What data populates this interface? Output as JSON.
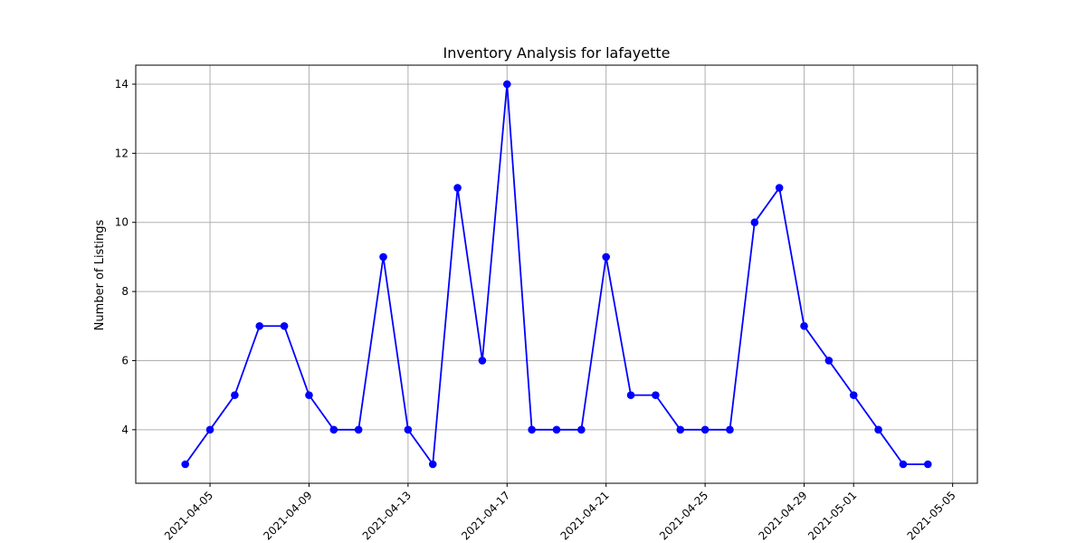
{
  "chart_data": {
    "type": "line",
    "title": "Inventory Analysis for lafayette",
    "xlabel": "",
    "ylabel": "Number of Listings",
    "grid": true,
    "x_is_date": true,
    "xlim": [
      "2021-04-02",
      "2021-05-06"
    ],
    "ylim": [
      2.45,
      14.55
    ],
    "x_ticks": [
      "2021-04-05",
      "2021-04-09",
      "2021-04-13",
      "2021-04-17",
      "2021-04-21",
      "2021-04-25",
      "2021-04-29",
      "2021-05-01",
      "2021-05-05"
    ],
    "y_ticks": [
      4,
      6,
      8,
      10,
      12,
      14
    ],
    "series": [
      {
        "color": "#0000ff",
        "marker": "circle",
        "points": [
          {
            "x": "2021-04-04",
            "y": 3
          },
          {
            "x": "2021-04-05",
            "y": 4
          },
          {
            "x": "2021-04-06",
            "y": 5
          },
          {
            "x": "2021-04-07",
            "y": 7
          },
          {
            "x": "2021-04-08",
            "y": 7
          },
          {
            "x": "2021-04-09",
            "y": 5
          },
          {
            "x": "2021-04-10",
            "y": 4
          },
          {
            "x": "2021-04-11",
            "y": 4
          },
          {
            "x": "2021-04-12",
            "y": 9
          },
          {
            "x": "2021-04-13",
            "y": 4
          },
          {
            "x": "2021-04-14",
            "y": 3
          },
          {
            "x": "2021-04-15",
            "y": 11
          },
          {
            "x": "2021-04-16",
            "y": 6
          },
          {
            "x": "2021-04-17",
            "y": 14
          },
          {
            "x": "2021-04-18",
            "y": 4
          },
          {
            "x": "2021-04-19",
            "y": 4
          },
          {
            "x": "2021-04-20",
            "y": 4
          },
          {
            "x": "2021-04-21",
            "y": 9
          },
          {
            "x": "2021-04-22",
            "y": 5
          },
          {
            "x": "2021-04-23",
            "y": 5
          },
          {
            "x": "2021-04-24",
            "y": 4
          },
          {
            "x": "2021-04-25",
            "y": 4
          },
          {
            "x": "2021-04-26",
            "y": 4
          },
          {
            "x": "2021-04-27",
            "y": 10
          },
          {
            "x": "2021-04-28",
            "y": 11
          },
          {
            "x": "2021-04-29",
            "y": 7
          },
          {
            "x": "2021-04-30",
            "y": 6
          },
          {
            "x": "2021-05-01",
            "y": 5
          },
          {
            "x": "2021-05-02",
            "y": 4
          },
          {
            "x": "2021-05-03",
            "y": 3
          },
          {
            "x": "2021-05-04",
            "y": 3
          }
        ]
      }
    ]
  }
}
